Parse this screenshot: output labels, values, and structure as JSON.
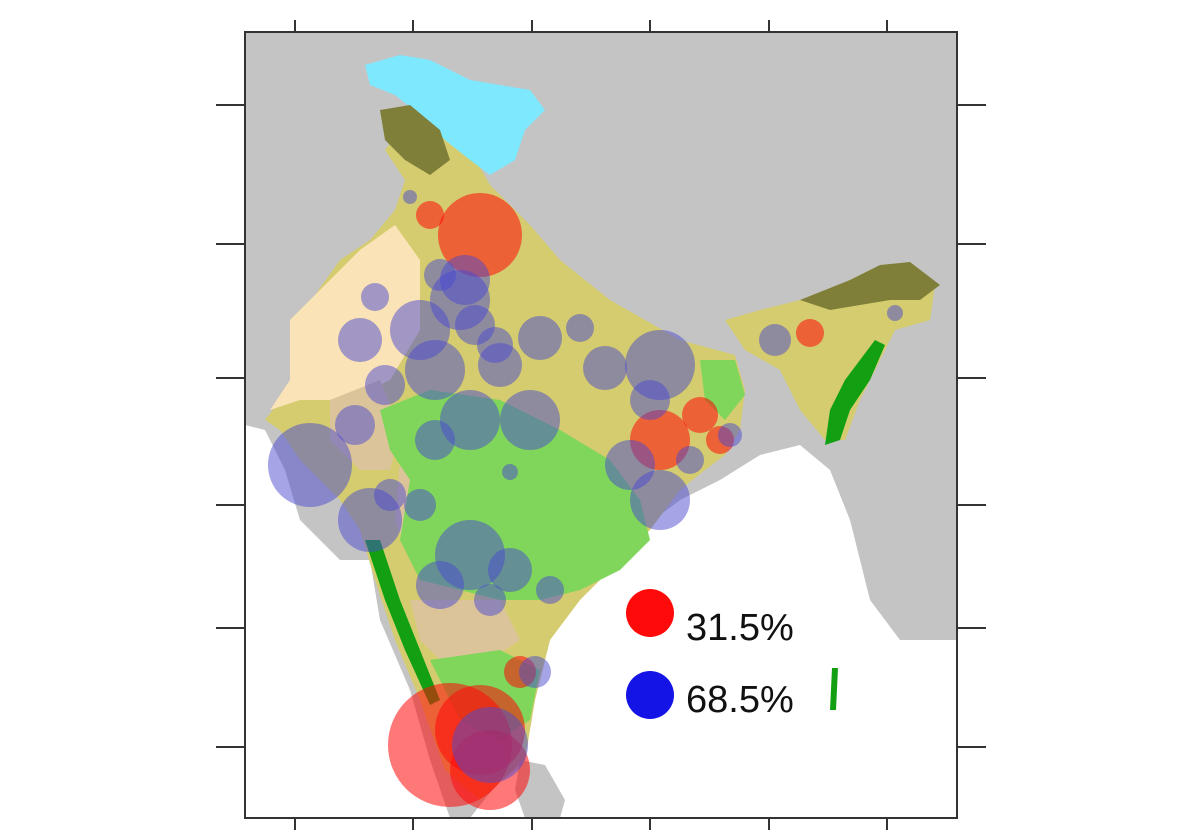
{
  "colors": {
    "background_land": "#c4c4c4",
    "sea": "#ffffff",
    "frame": "#333333",
    "red_marker": "#ff0a0a",
    "blue_marker": "#1414e6",
    "snow": "#7ee8ff",
    "olive": "#d4cc6e",
    "desert": "#fbe3b8",
    "tan": "#dcc49a",
    "light_green": "#7fd65a",
    "dark_green": "#12a012",
    "moss": "#7f7f3a"
  },
  "legend": {
    "items": [
      {
        "label": "31.5%",
        "color": "#ff0a0a"
      },
      {
        "label": "68.5%",
        "color": "#1414e6"
      }
    ]
  },
  "markers": {
    "red": [
      [
        480,
        235,
        42
      ],
      [
        450,
        745,
        62
      ],
      [
        480,
        730,
        45
      ],
      [
        490,
        770,
        40
      ],
      [
        660,
        440,
        30
      ],
      [
        700,
        415,
        18
      ],
      [
        720,
        440,
        14
      ],
      [
        810,
        333,
        14
      ],
      [
        520,
        672,
        16
      ],
      [
        430,
        215,
        14
      ]
    ],
    "blue": [
      [
        465,
        280,
        25
      ],
      [
        440,
        275,
        16
      ],
      [
        375,
        297,
        14
      ],
      [
        360,
        340,
        22
      ],
      [
        420,
        330,
        30
      ],
      [
        460,
        300,
        30
      ],
      [
        475,
        325,
        20
      ],
      [
        495,
        345,
        18
      ],
      [
        435,
        370,
        30
      ],
      [
        385,
        385,
        20
      ],
      [
        500,
        365,
        22
      ],
      [
        540,
        338,
        22
      ],
      [
        580,
        328,
        14
      ],
      [
        605,
        368,
        22
      ],
      [
        660,
        365,
        35
      ],
      [
        650,
        400,
        20
      ],
      [
        470,
        420,
        30
      ],
      [
        530,
        420,
        30
      ],
      [
        435,
        440,
        20
      ],
      [
        310,
        465,
        42
      ],
      [
        355,
        425,
        20
      ],
      [
        370,
        520,
        32
      ],
      [
        390,
        495,
        16
      ],
      [
        420,
        505,
        16
      ],
      [
        630,
        465,
        25
      ],
      [
        660,
        500,
        30
      ],
      [
        690,
        460,
        14
      ],
      [
        730,
        435,
        12
      ],
      [
        470,
        555,
        35
      ],
      [
        440,
        585,
        24
      ],
      [
        510,
        570,
        22
      ],
      [
        490,
        600,
        16
      ],
      [
        550,
        590,
        14
      ],
      [
        535,
        672,
        16
      ],
      [
        490,
        745,
        38
      ],
      [
        775,
        340,
        16
      ],
      [
        895,
        313,
        8
      ],
      [
        410,
        197,
        7
      ],
      [
        510,
        472,
        8
      ]
    ]
  }
}
